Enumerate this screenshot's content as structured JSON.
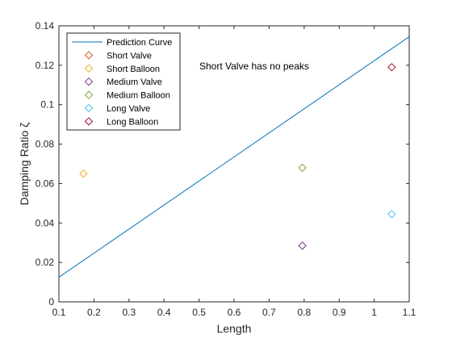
{
  "chart_data": {
    "type": "scatter",
    "xlabel": "Length",
    "ylabel": "Damping Ratio ζ",
    "xlim": [
      0.1,
      1.1
    ],
    "ylim": [
      0,
      0.14
    ],
    "xticks": [
      0.1,
      0.2,
      0.3,
      0.4,
      0.5,
      0.6,
      0.7,
      0.8,
      0.9,
      1,
      1.1
    ],
    "yticks": [
      0,
      0.02,
      0.04,
      0.06,
      0.08,
      0.1,
      0.12,
      0.14
    ],
    "xtick_labels": [
      "0.1",
      "0.2",
      "0.3",
      "0.4",
      "0.5",
      "0.6",
      "0.7",
      "0.8",
      "0.9",
      "1",
      "1.1"
    ],
    "ytick_labels": [
      "0",
      "0.02",
      "0.04",
      "0.06",
      "0.08",
      "0.1",
      "0.12",
      "0.14"
    ],
    "grid": false,
    "legend_position": "top-left",
    "annotation": "Short Valve has no peaks",
    "line": {
      "name": "Prediction Curve",
      "color": "#0072BD",
      "x": [
        0.1,
        1.1
      ],
      "y": [
        0.0125,
        0.1345
      ]
    },
    "series": [
      {
        "name": "Short Valve",
        "color": "#D95319",
        "x": [],
        "y": []
      },
      {
        "name": "Short Balloon",
        "color": "#EDB120",
        "x": [
          0.17
        ],
        "y": [
          0.065
        ]
      },
      {
        "name": "Medium Valve",
        "color": "#7E2F8E",
        "x": [
          0.795
        ],
        "y": [
          0.0285
        ]
      },
      {
        "name": "Medium Balloon",
        "color": "#77AC30",
        "x": [
          0.795
        ],
        "y": [
          0.068
        ]
      },
      {
        "name": "Long Valve",
        "color": "#4DBEEE",
        "x": [
          1.05
        ],
        "y": [
          0.0445
        ]
      },
      {
        "name": "Long Balloon",
        "color": "#A2142F",
        "x": [
          1.05
        ],
        "y": [
          0.119
        ]
      }
    ]
  }
}
